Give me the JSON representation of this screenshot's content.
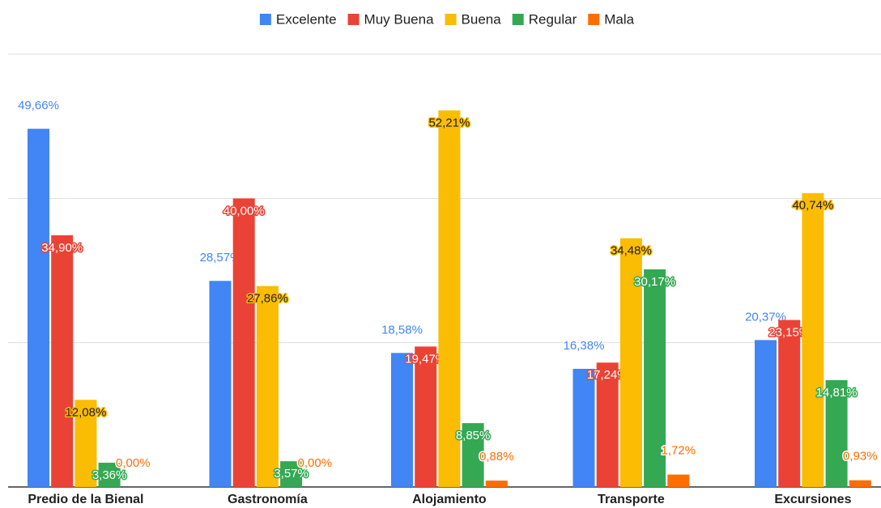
{
  "chart_data": {
    "type": "bar",
    "categories": [
      "Predio de la Bienal",
      "Gastronomía",
      "Alojamiento",
      "Transporte",
      "Excursiones"
    ],
    "series": [
      {
        "name": "Excelente",
        "color": "#4285f4",
        "values": [
          49.66,
          28.57,
          18.58,
          16.38,
          20.37
        ],
        "value_labels": [
          "49,66%",
          "28,57%",
          "18,58%",
          "16,38%",
          "20,37%"
        ]
      },
      {
        "name": "Muy Buena",
        "color": "#ea4335",
        "values": [
          34.9,
          40.0,
          19.47,
          17.24,
          23.15
        ],
        "value_labels": [
          "34,90%",
          "40,00%",
          "19,47%",
          "17,24%",
          "23,15%"
        ]
      },
      {
        "name": "Buena",
        "color": "#fbbc04",
        "values": [
          12.08,
          27.86,
          52.21,
          34.48,
          40.74
        ],
        "value_labels": [
          "12,08%",
          "27,86%",
          "52,21%",
          "34,48%",
          "40,74%"
        ]
      },
      {
        "name": "Regular",
        "color": "#34a853",
        "values": [
          3.36,
          3.57,
          8.85,
          30.17,
          14.81
        ],
        "value_labels": [
          "3,36%",
          "3,57%",
          "8,85%",
          "30,17%",
          "14,81%"
        ]
      },
      {
        "name": "Mala",
        "color": "#ff6d01",
        "values": [
          0.0,
          0.0,
          0.88,
          1.72,
          0.93
        ],
        "value_labels": [
          "0,00%",
          "0,00%",
          "0,88%",
          "1,72%",
          "0,93%"
        ]
      }
    ],
    "ylim": [
      0,
      60
    ],
    "yticks": [
      0,
      20,
      40,
      60
    ],
    "grid": true,
    "legend": "top"
  }
}
